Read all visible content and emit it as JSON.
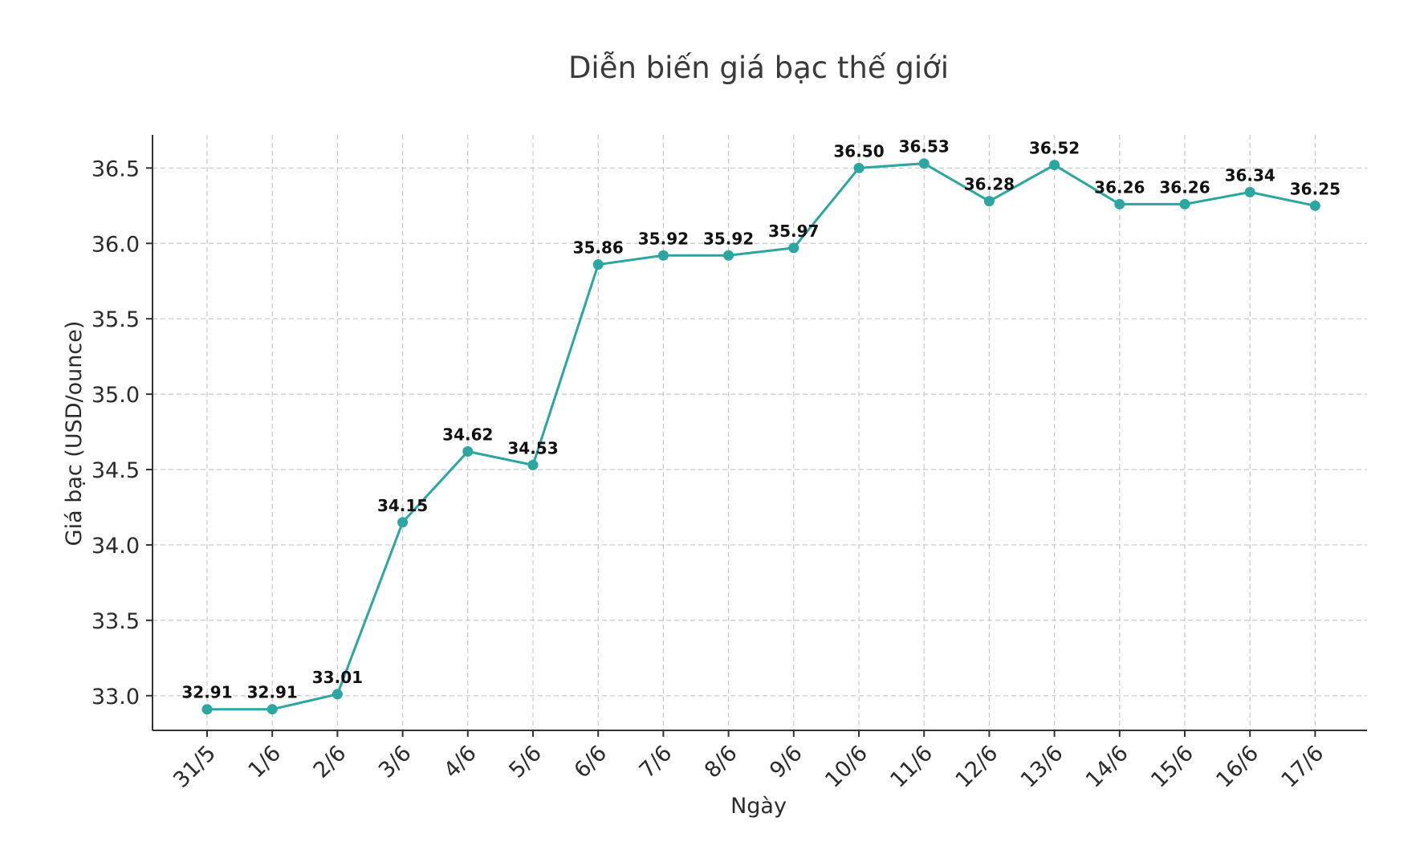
{
  "colors": {
    "series": "#2ba6a0",
    "background": "#ffffff"
  },
  "chart_data": {
    "type": "line",
    "title": "Diễn biến giá bạc thế giới",
    "xlabel": "Ngày",
    "ylabel": "Giá bạc (USD/ounce)",
    "categories": [
      "31/5",
      "1/6",
      "2/6",
      "3/6",
      "4/6",
      "5/6",
      "6/6",
      "7/6",
      "8/6",
      "9/6",
      "10/6",
      "11/6",
      "12/6",
      "13/6",
      "14/6",
      "15/6",
      "16/6",
      "17/6"
    ],
    "series": [
      {
        "name": "Giá bạc",
        "values": [
          32.91,
          32.91,
          33.01,
          34.15,
          34.62,
          34.53,
          35.86,
          35.92,
          35.92,
          35.97,
          36.5,
          36.53,
          36.28,
          36.52,
          36.26,
          36.26,
          36.34,
          36.25
        ],
        "labels": [
          "32.91",
          "32.91",
          "33.01",
          "34.15",
          "34.62",
          "34.53",
          "35.86",
          "35.92",
          "35.92",
          "35.97",
          "36.50",
          "36.53",
          "36.28",
          "36.52",
          "36.26",
          "36.26",
          "36.34",
          "36.25"
        ]
      }
    ],
    "yticks": [
      "33.0",
      "33.5",
      "34.0",
      "34.5",
      "35.0",
      "35.5",
      "36.0",
      "36.5"
    ],
    "ylim": [
      32.77,
      36.72
    ],
    "grid": true,
    "legend": "none"
  }
}
